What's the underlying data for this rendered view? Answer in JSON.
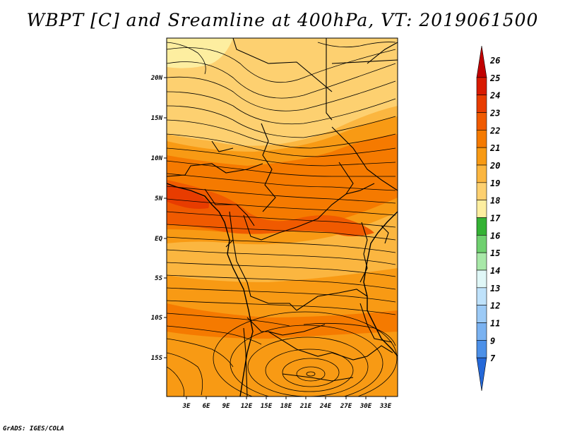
{
  "title": "WBPT [C] and Sreamline at 400hPa, VT: 2019061500",
  "credit": "GrADS: IGES/COLA",
  "map": {
    "lat_ticks": [
      "20N",
      "15N",
      "10N",
      "5N",
      "EQ",
      "5S",
      "10S",
      "15S"
    ],
    "lon_ticks": [
      "3E",
      "6E",
      "9E",
      "12E",
      "15E",
      "18E",
      "21E",
      "24E",
      "27E",
      "30E",
      "33E"
    ]
  },
  "colorbar": {
    "labels": [
      "26",
      "25",
      "24",
      "23",
      "22",
      "21",
      "20",
      "19",
      "18",
      "17",
      "16",
      "15",
      "14",
      "13",
      "12",
      "11",
      "9",
      "7"
    ],
    "colors": [
      "#c00000",
      "#d81a00",
      "#e83c00",
      "#f05a00",
      "#f57a00",
      "#f89a14",
      "#fbb640",
      "#fdd070",
      "#fdeea0",
      "#34b234",
      "#6fd06f",
      "#a8e8a8",
      "#e0f7f7",
      "#bfe2fb",
      "#9ccaf6",
      "#7ab2f1",
      "#4c90e8",
      "#2468d8"
    ]
  }
}
